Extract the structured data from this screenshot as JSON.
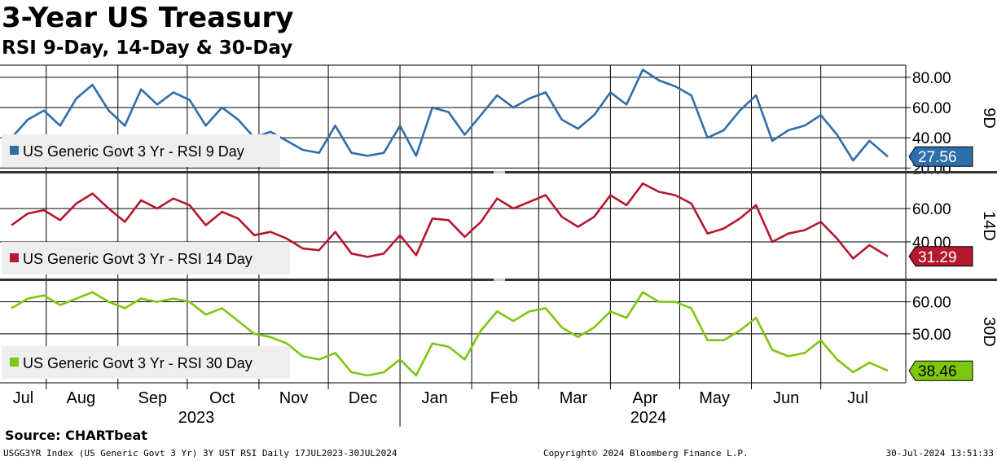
{
  "title": "3-Year US Treasury",
  "subtitle": "RSI 9-Day, 14-Day & 30-Day",
  "source": "Source:  CHARTbeat",
  "footer": {
    "left": "USGG3YR Index (US Generic Govt 3 Yr) 3Y UST RSI  Daily 17JUL2023-30JUL2024",
    "middle": "Copyright© 2024 Bloomberg Finance L.P.",
    "right": "30-Jul-2024 13:51:33"
  },
  "colors": {
    "rsi9": "#2e6eaa",
    "rsi14": "#b5172e",
    "rsi30": "#7ec610",
    "background": "#ffffff",
    "grid": "#000000",
    "legend_bg": "#eeeeee"
  },
  "chart_data": [
    {
      "type": "line",
      "panel": "9D",
      "x_range": [
        "2023-07-17",
        "2024-07-30"
      ],
      "y_ticks": [
        "80.00",
        "60.00",
        "40.00",
        "20.00"
      ],
      "ylim": [
        18,
        88
      ],
      "series": [
        {
          "name": "US Generic Govt 3 Yr - RSI 9 Day",
          "color": "#2e6eaa",
          "last_value": "27.56",
          "x": [
            "2023-07-17",
            "2023-07-24",
            "2023-07-31",
            "2023-08-07",
            "2023-08-14",
            "2023-08-21",
            "2023-08-28",
            "2023-09-04",
            "2023-09-11",
            "2023-09-18",
            "2023-09-25",
            "2023-10-02",
            "2023-10-09",
            "2023-10-16",
            "2023-10-23",
            "2023-10-30",
            "2023-11-06",
            "2023-11-13",
            "2023-11-20",
            "2023-11-27",
            "2023-12-04",
            "2023-12-11",
            "2023-12-18",
            "2023-12-25",
            "2024-01-01",
            "2024-01-08",
            "2024-01-15",
            "2024-01-22",
            "2024-01-29",
            "2024-02-05",
            "2024-02-12",
            "2024-02-19",
            "2024-02-26",
            "2024-03-04",
            "2024-03-11",
            "2024-03-18",
            "2024-03-25",
            "2024-04-01",
            "2024-04-08",
            "2024-04-15",
            "2024-04-22",
            "2024-04-29",
            "2024-05-06",
            "2024-05-13",
            "2024-05-20",
            "2024-05-27",
            "2024-06-03",
            "2024-06-10",
            "2024-06-17",
            "2024-06-24",
            "2024-07-01",
            "2024-07-08",
            "2024-07-15",
            "2024-07-22",
            "2024-07-30"
          ],
          "values": [
            40,
            52,
            58,
            48,
            66,
            75,
            58,
            48,
            72,
            62,
            70,
            65,
            48,
            60,
            52,
            40,
            44,
            38,
            32,
            30,
            48,
            30,
            28,
            30,
            48,
            28,
            60,
            57,
            42,
            55,
            68,
            60,
            66,
            70,
            52,
            46,
            55,
            70,
            62,
            85,
            78,
            74,
            68,
            40,
            45,
            58,
            68,
            38,
            45,
            48,
            55,
            42,
            25,
            38,
            27.56
          ]
        }
      ]
    },
    {
      "type": "line",
      "panel": "14D",
      "x_range": [
        "2023-07-17",
        "2024-07-30"
      ],
      "y_ticks": [
        "60.00",
        "40.00"
      ],
      "ylim": [
        18,
        81
      ],
      "series": [
        {
          "name": "US Generic Govt 3 Yr - RSI 14 Day",
          "color": "#b5172e",
          "last_value": "31.29",
          "x": [
            "2023-07-17",
            "2023-07-24",
            "2023-07-31",
            "2023-08-07",
            "2023-08-14",
            "2023-08-21",
            "2023-08-28",
            "2023-09-04",
            "2023-09-11",
            "2023-09-18",
            "2023-09-25",
            "2023-10-02",
            "2023-10-09",
            "2023-10-16",
            "2023-10-23",
            "2023-10-30",
            "2023-11-06",
            "2023-11-13",
            "2023-11-20",
            "2023-11-27",
            "2023-12-04",
            "2023-12-11",
            "2023-12-18",
            "2023-12-25",
            "2024-01-01",
            "2024-01-08",
            "2024-01-15",
            "2024-01-22",
            "2024-01-29",
            "2024-02-05",
            "2024-02-12",
            "2024-02-19",
            "2024-02-26",
            "2024-03-04",
            "2024-03-11",
            "2024-03-18",
            "2024-03-25",
            "2024-04-01",
            "2024-04-08",
            "2024-04-15",
            "2024-04-22",
            "2024-04-29",
            "2024-05-06",
            "2024-05-13",
            "2024-05-20",
            "2024-05-27",
            "2024-06-03",
            "2024-06-10",
            "2024-06-17",
            "2024-06-24",
            "2024-07-01",
            "2024-07-08",
            "2024-07-15",
            "2024-07-22",
            "2024-07-30"
          ],
          "values": [
            50,
            57,
            59,
            53,
            63,
            69,
            60,
            52,
            65,
            60,
            66,
            62,
            50,
            58,
            54,
            44,
            46,
            42,
            36,
            35,
            46,
            33,
            31,
            33,
            44,
            32,
            54,
            53,
            43,
            52,
            66,
            60,
            64,
            68,
            55,
            49,
            55,
            68,
            62,
            75,
            70,
            68,
            63,
            45,
            48,
            54,
            62,
            40,
            45,
            47,
            52,
            42,
            30,
            38,
            31.29
          ]
        }
      ]
    },
    {
      "type": "line",
      "panel": "30D",
      "x_range": [
        "2023-07-17",
        "2024-07-30"
      ],
      "y_ticks": [
        "60.00",
        "50.00"
      ],
      "ylim": [
        34.7,
        66.5
      ],
      "series": [
        {
          "name": "US Generic Govt 3 Yr - RSI 30 Day",
          "color": "#7ec610",
          "last_value": "38.46",
          "x": [
            "2023-07-17",
            "2023-07-24",
            "2023-07-31",
            "2023-08-07",
            "2023-08-14",
            "2023-08-21",
            "2023-08-28",
            "2023-09-04",
            "2023-09-11",
            "2023-09-18",
            "2023-09-25",
            "2023-10-02",
            "2023-10-09",
            "2023-10-16",
            "2023-10-23",
            "2023-10-30",
            "2023-11-06",
            "2023-11-13",
            "2023-11-20",
            "2023-11-27",
            "2023-12-04",
            "2023-12-11",
            "2023-12-18",
            "2023-12-25",
            "2024-01-01",
            "2024-01-08",
            "2024-01-15",
            "2024-01-22",
            "2024-01-29",
            "2024-02-05",
            "2024-02-12",
            "2024-02-19",
            "2024-02-26",
            "2024-03-04",
            "2024-03-11",
            "2024-03-18",
            "2024-03-25",
            "2024-04-01",
            "2024-04-08",
            "2024-04-15",
            "2024-04-22",
            "2024-04-29",
            "2024-05-06",
            "2024-05-13",
            "2024-05-20",
            "2024-05-27",
            "2024-06-03",
            "2024-06-10",
            "2024-06-17",
            "2024-06-24",
            "2024-07-01",
            "2024-07-08",
            "2024-07-15",
            "2024-07-22",
            "2024-07-30"
          ],
          "values": [
            58,
            61,
            62,
            59,
            61,
            63,
            60,
            58,
            61,
            60,
            61,
            60,
            56,
            58,
            54,
            50,
            49,
            47,
            43,
            42,
            44,
            38,
            37,
            38,
            42,
            37,
            47,
            46,
            42,
            51,
            57,
            54,
            57,
            58,
            52,
            49,
            52,
            57,
            55,
            63,
            60,
            60,
            58,
            48,
            48,
            51,
            55,
            45,
            43,
            44,
            48,
            42,
            38,
            41,
            38.46
          ]
        }
      ]
    }
  ],
  "x_axis": {
    "months": [
      "Jul",
      "Aug",
      "Sep",
      "Oct",
      "Nov",
      "Dec",
      "Jan",
      "Feb",
      "Mar",
      "Apr",
      "May",
      "Jun",
      "Jul"
    ],
    "years": [
      "2023",
      "2024"
    ]
  },
  "panel_labels": [
    "9D",
    "14D",
    "30D"
  ]
}
